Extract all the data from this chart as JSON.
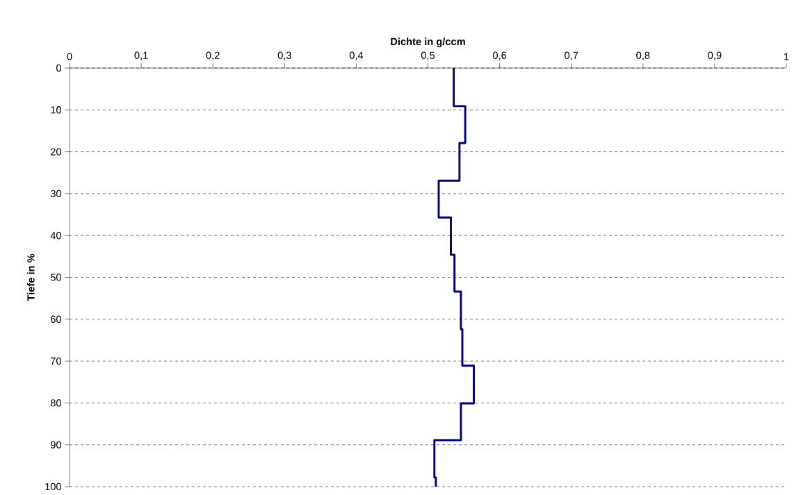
{
  "chart_data": {
    "type": "line",
    "xlabel": "Dichte in g/ccm",
    "ylabel": "Tiefe in %",
    "xlim": [
      0,
      1
    ],
    "xticks": [
      0,
      {
        "value": 0.1,
        "label": "0,1"
      },
      {
        "value": 0.2,
        "label": "0,2"
      },
      {
        "value": 0.3,
        "label": "0,3"
      },
      {
        "value": 0.4,
        "label": "0,4"
      },
      {
        "value": 0.5,
        "label": "0,5"
      },
      {
        "value": 0.6,
        "label": "0,6"
      },
      {
        "value": 0.7,
        "label": "0,7"
      },
      {
        "value": 0.8,
        "label": "0,8"
      },
      {
        "value": 0.9,
        "label": "0,9"
      },
      1
    ],
    "ylim": [
      100,
      0
    ],
    "yticks": [
      0,
      10,
      20,
      30,
      40,
      50,
      60,
      70,
      80,
      90,
      100
    ],
    "grid": "y",
    "series": [
      {
        "color": "#000080",
        "line_style": "solid",
        "x": [
          0.536,
          0.536,
          0.552,
          0.552,
          0.544,
          0.544,
          0.515,
          0.515,
          0.532,
          0.532,
          0.537,
          0.537,
          0.546,
          0.546,
          0.548,
          0.548,
          0.564,
          0.564,
          0.546,
          0.546,
          0.509,
          0.509,
          0.511,
          0.511
        ],
        "values": [
          0,
          9.1,
          9.1,
          17.9,
          17.9,
          26.9,
          26.9,
          35.7,
          35.7,
          44.6,
          44.6,
          53.4,
          53.4,
          62.4,
          62.4,
          71.1,
          71.1,
          80.1,
          80.1,
          88.9,
          88.9,
          97.8,
          97.8,
          100
        ]
      }
    ]
  }
}
